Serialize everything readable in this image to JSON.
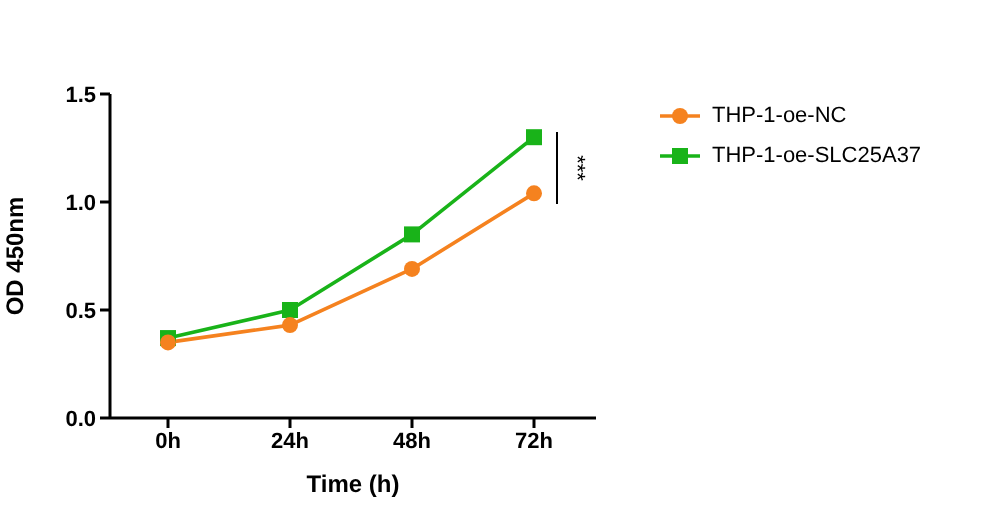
{
  "chart_data": {
    "type": "line",
    "xlabel": "Time (h)",
    "ylabel": "OD 450nm",
    "categories": [
      "0h",
      "24h",
      "48h",
      "72h"
    ],
    "series": [
      {
        "name": "THP-1-oe-NC",
        "color": "#f5821f",
        "marker": "circle",
        "values": [
          0.35,
          0.43,
          0.69,
          1.04
        ]
      },
      {
        "name": "THP-1-oe-SLC25A37",
        "color": "#19b319",
        "marker": "square",
        "values": [
          0.37,
          0.5,
          0.85,
          1.3
        ]
      }
    ],
    "ylim": [
      0,
      1.5
    ],
    "yticks": [
      {
        "value": 0,
        "label": "0.0"
      },
      {
        "value": 0.5,
        "label": "0.5"
      },
      {
        "value": 1,
        "label": "1.0"
      },
      {
        "value": 1.5,
        "label": "1.5"
      }
    ],
    "grid": false,
    "legend": "right",
    "annotations": [
      "***"
    ]
  }
}
